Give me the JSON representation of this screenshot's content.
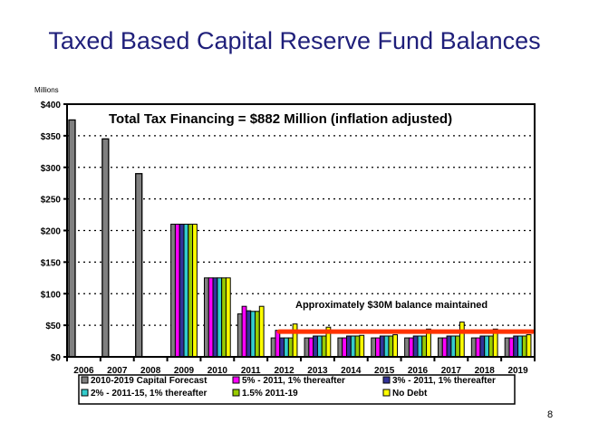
{
  "slide": {
    "title": "Taxed Based Capital Reserve Fund Balances",
    "units_label": "Millions",
    "page_number": "8"
  },
  "chart_data": {
    "type": "bar",
    "title": "Taxed Based Capital Reserve Fund Balances",
    "xlabel": "",
    "ylabel": "Millions",
    "ylim": [
      0,
      400
    ],
    "yticks": [
      0,
      50,
      100,
      150,
      200,
      250,
      300,
      350,
      400
    ],
    "ytick_labels": [
      "$0",
      "$50",
      "$100",
      "$150",
      "$200",
      "$250",
      "$300",
      "$350",
      "$400"
    ],
    "grid": "horizontal dotted",
    "legend_position": "bottom",
    "categories": [
      "2006",
      "2007",
      "2008",
      "2009",
      "2010",
      "2011",
      "2012",
      "2013",
      "2014",
      "2015",
      "2016",
      "2017",
      "2018",
      "2019"
    ],
    "series": [
      {
        "name": "2010-2019 Capital Forecast",
        "color": "#808080",
        "values": [
          375,
          345,
          290,
          210,
          125,
          68,
          30,
          30,
          30,
          30,
          30,
          30,
          30,
          30
        ]
      },
      {
        "name": "5% - 2011, 1% thereafter",
        "color": "#ff00ff",
        "values": [
          null,
          null,
          null,
          210,
          125,
          80,
          42,
          30,
          30,
          30,
          30,
          30,
          30,
          30
        ]
      },
      {
        "name": "3% - 2011, 1% thereafter",
        "color": "#333399",
        "values": [
          null,
          null,
          null,
          210,
          125,
          73,
          30,
          33,
          33,
          33,
          33,
          33,
          33,
          33
        ]
      },
      {
        "name": "2% - 2011-15, 1% thereafter",
        "color": "#33cccc",
        "values": [
          null,
          null,
          null,
          210,
          125,
          72,
          30,
          33,
          33,
          33,
          33,
          33,
          33,
          33
        ]
      },
      {
        "name": "1.5% 2011-19",
        "color": "#99cc00",
        "values": [
          null,
          null,
          null,
          210,
          125,
          72,
          30,
          33,
          33,
          33,
          33,
          33,
          33,
          33
        ]
      },
      {
        "name": "No Debt",
        "color": "#ffff00",
        "values": [
          null,
          null,
          null,
          210,
          125,
          80,
          52,
          47,
          34,
          35,
          44,
          55,
          44,
          35
        ]
      }
    ],
    "annotations": [
      {
        "text": "Total Tax Financing = $882 Million (inflation adjusted)",
        "position": "top"
      },
      {
        "text": "Approximately $30M balance maintained",
        "position": "right-lower"
      }
    ],
    "reference_line": {
      "label": "Approximately $30M balance maintained",
      "value": 40,
      "from": "2012",
      "to": "2019",
      "color": "#ff3300"
    }
  }
}
